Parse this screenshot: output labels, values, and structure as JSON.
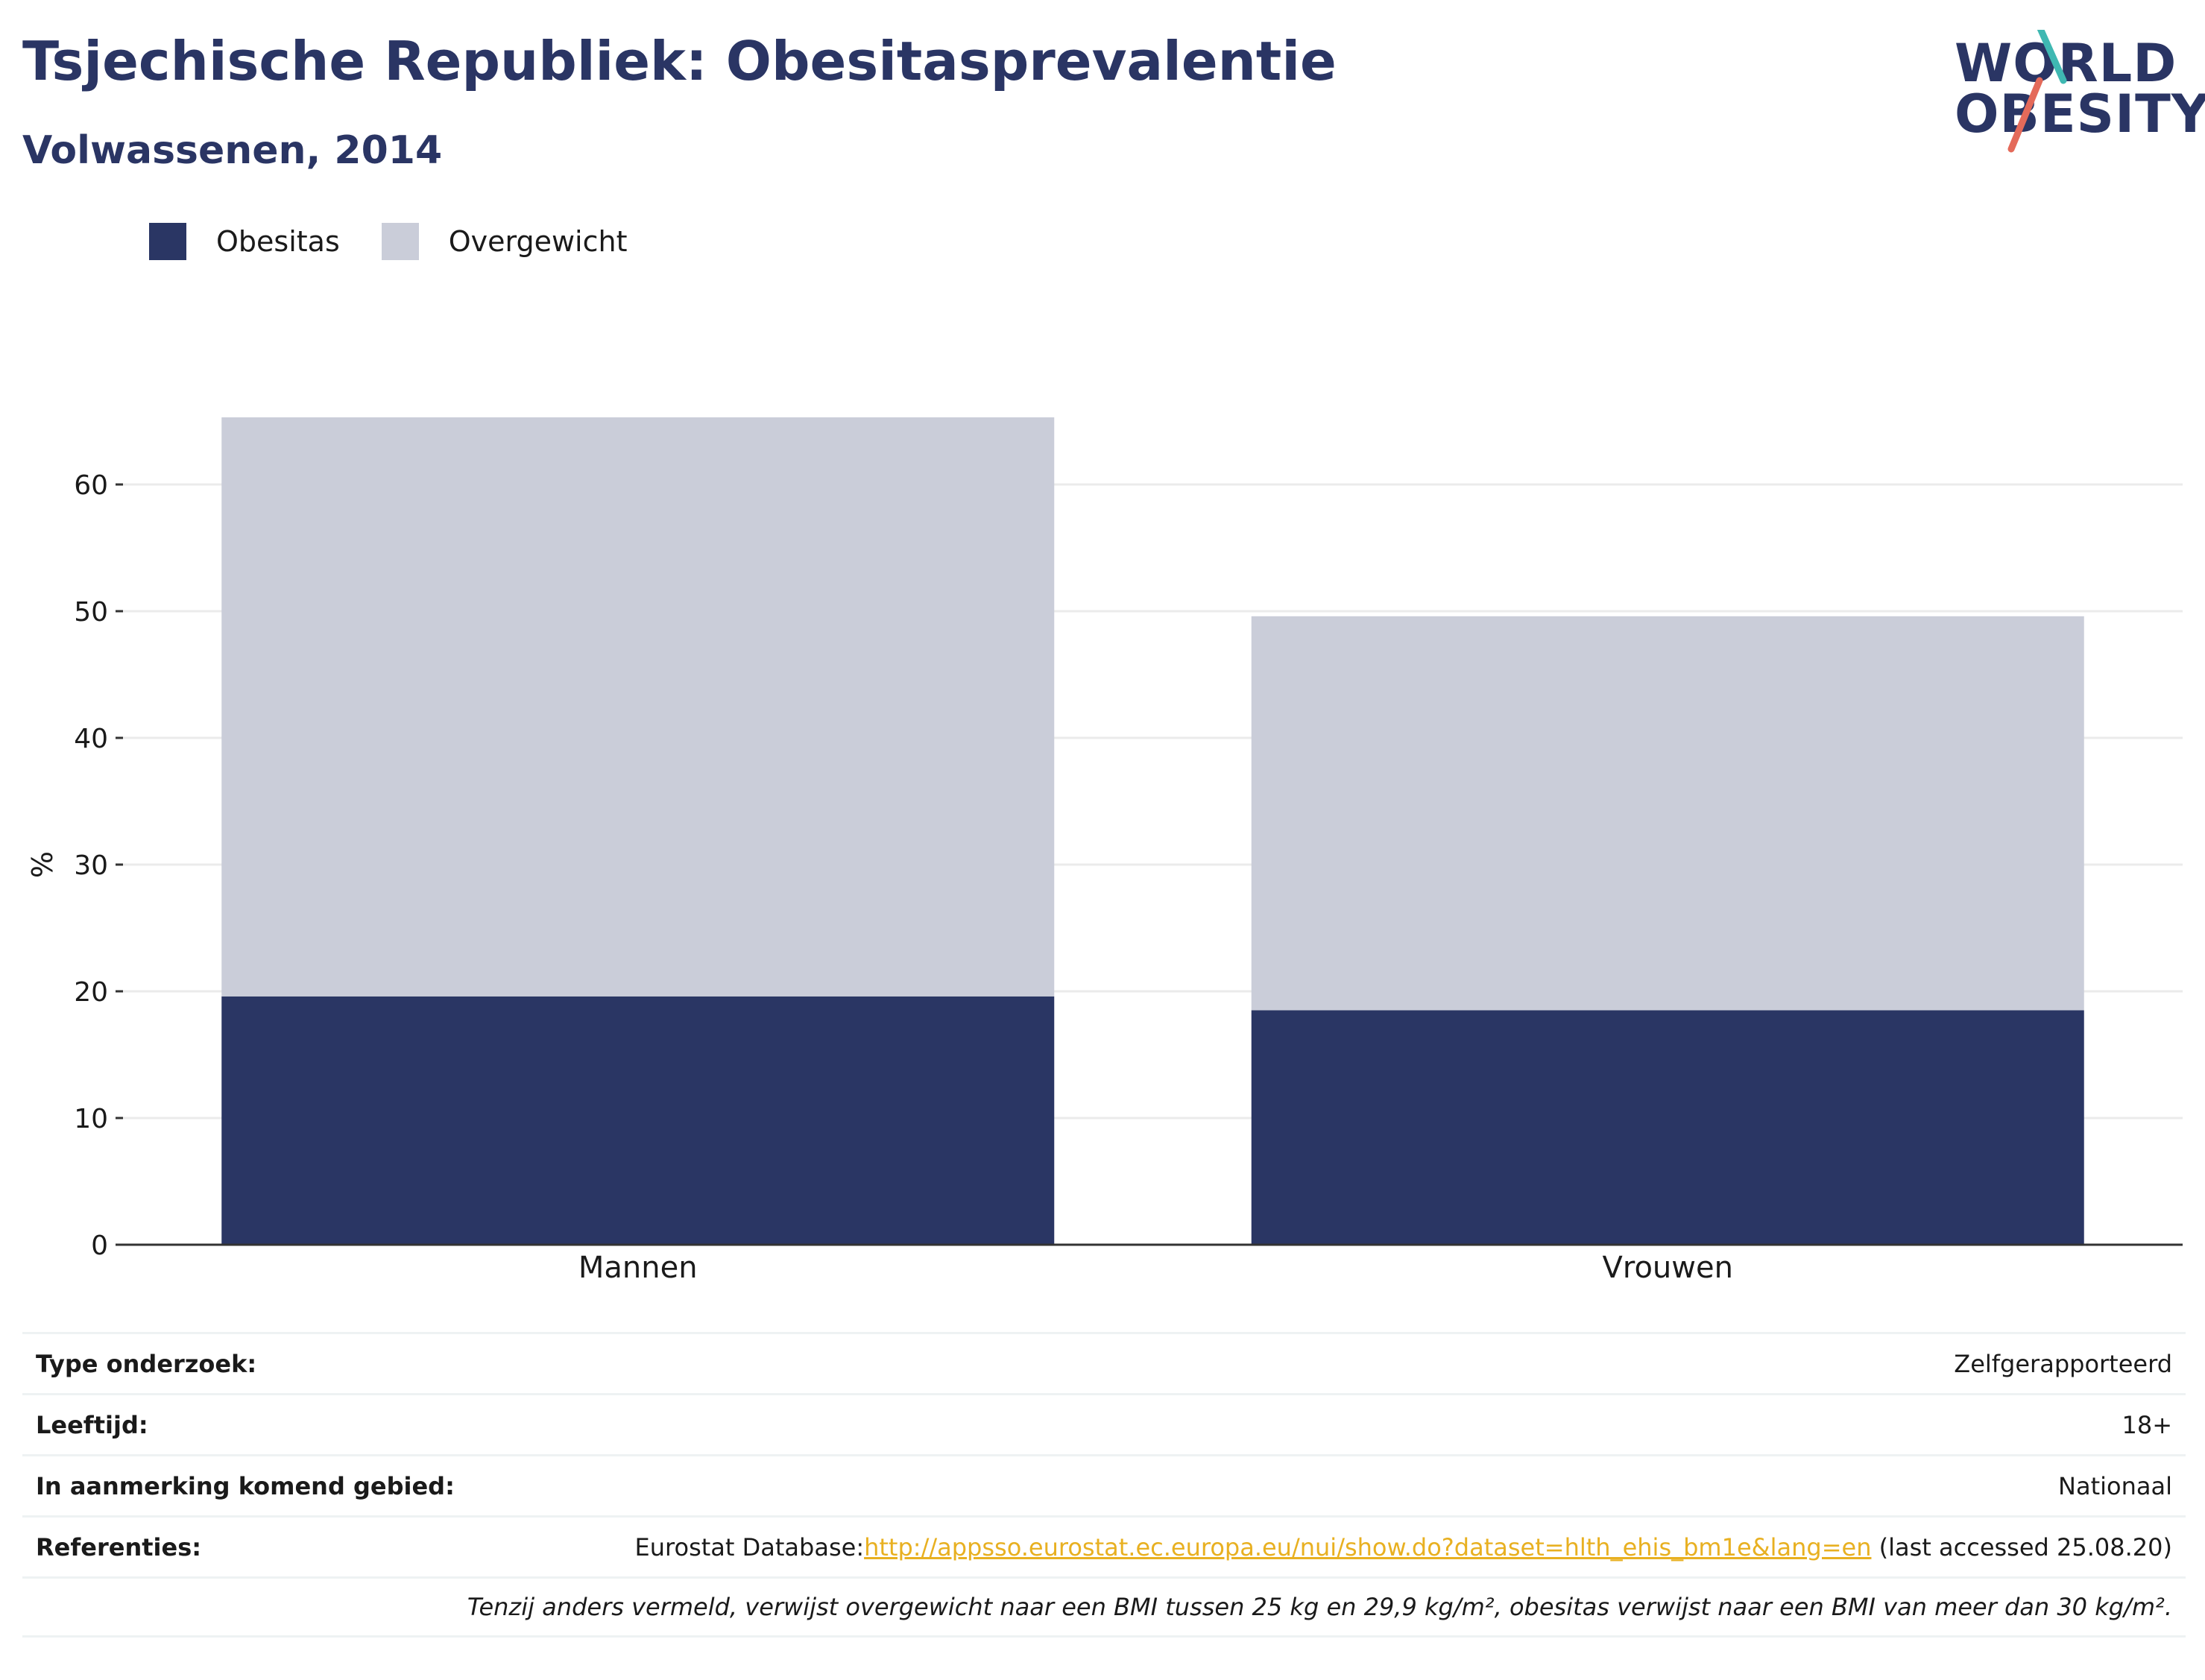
{
  "header": {
    "title": "Tsjechische Republiek: Obesitasprevalentie",
    "subtitle": "Volwassenen, 2014"
  },
  "logo": {
    "line1": "WORLD",
    "line2": "OBESITY"
  },
  "colors": {
    "obesitas": "#2a3664",
    "overgewicht": "#cacdd9",
    "title": "#2a3564",
    "link": "#e8b021"
  },
  "chart_data": {
    "type": "bar",
    "stacked": true,
    "categories": [
      "Mannen",
      "Vrouwen"
    ],
    "series": [
      {
        "name": "Obesitas",
        "values": [
          19.6,
          18.5
        ]
      },
      {
        "name": "Overgewicht",
        "values": [
          45.7,
          31.1
        ]
      }
    ],
    "ylabel": "%",
    "ylim": [
      0,
      65.3
    ],
    "yticks": [
      0,
      10,
      20,
      30,
      40,
      50,
      60
    ],
    "grid": true,
    "legend_position": "top-left"
  },
  "info": {
    "rows": [
      {
        "label": "Type onderzoek:",
        "value": "Zelfgerapporteerd"
      },
      {
        "label": "Leeftijd:",
        "value": "18+"
      },
      {
        "label": "In aanmerking komend gebied:",
        "value": "Nationaal"
      }
    ],
    "references": {
      "label": "Referenties:",
      "prefix": "Eurostat Database:",
      "link": "http://appsso.eurostat.ec.europa.eu/nui/show.do?dataset=hlth_ehis_bm1e&lang=en",
      "suffix": " (last accessed 25.08.20)"
    },
    "footnote": "Tenzij anders vermeld, verwijst overgewicht naar een BMI tussen 25 kg en 29,9 kg/m², obesitas verwijst naar een BMI van meer dan 30 kg/m²."
  }
}
